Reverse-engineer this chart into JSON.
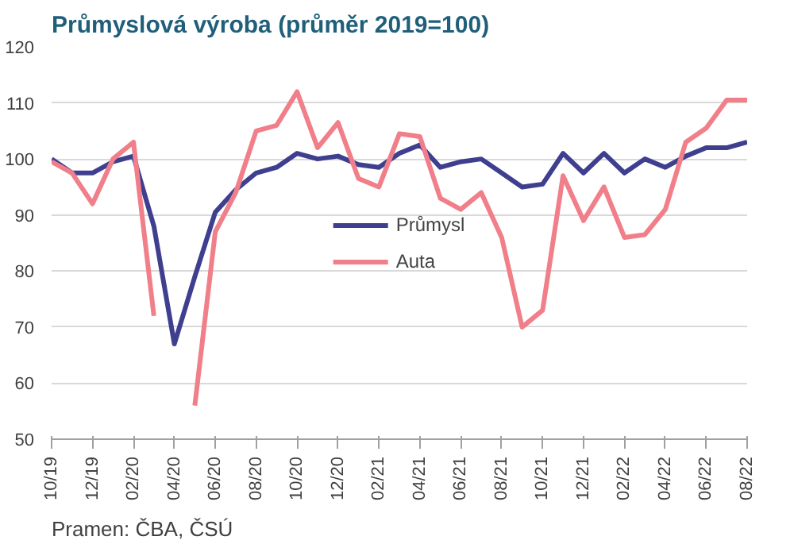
{
  "chart_data": {
    "type": "line",
    "title": "Průmyslová výroba (průměr 2019=100)",
    "categories": [
      "10/19",
      null,
      "12/19",
      null,
      "02/20",
      null,
      "04/20",
      null,
      "06/20",
      null,
      "08/20",
      null,
      "10/20",
      null,
      "12/20",
      null,
      "02/21",
      null,
      "04/21",
      null,
      "06/21",
      null,
      "08/21",
      null,
      "10/21",
      null,
      "12/21",
      null,
      "02/22",
      null,
      "04/22",
      null,
      "06/22",
      null,
      "08/22"
    ],
    "series": [
      {
        "name": "Průmysl",
        "color": "#3f3f8f",
        "values": [
          100,
          97.5,
          97.5,
          99.5,
          100.5,
          88,
          67,
          79,
          90.5,
          94.5,
          97.5,
          98.5,
          101,
          100,
          100.5,
          99,
          98.5,
          101,
          102.5,
          98.5,
          99.5,
          100,
          97.5,
          95,
          95.5,
          101,
          97.5,
          101,
          97.5,
          100,
          98.5,
          100.5,
          102,
          102,
          103
        ]
      },
      {
        "name": "Auta",
        "color": "#f07f8a",
        "values": [
          99.5,
          97.5,
          92,
          100,
          103,
          72,
          null,
          56,
          87,
          94,
          105,
          106,
          112,
          102,
          106.5,
          96.5,
          95,
          104.5,
          104,
          93,
          91,
          94,
          86,
          70,
          73,
          97,
          89,
          95,
          86,
          86.5,
          91,
          103,
          105.5,
          110.5,
          110.5
        ]
      }
    ],
    "ylim": [
      50,
      120
    ],
    "yticks": [
      50,
      60,
      70,
      80,
      90,
      100,
      110,
      120
    ],
    "grid": "y",
    "legend": "center",
    "annotations": [
      "Pramen: ČBA, ČSÚ"
    ]
  }
}
